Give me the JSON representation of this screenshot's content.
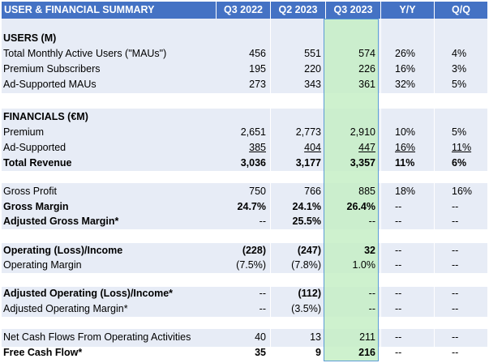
{
  "header": {
    "title": "USER & FINANCIAL SUMMARY",
    "columns": [
      "Q3 2022",
      "Q2 2023",
      "Q3 2023",
      "Y/Y",
      "Q/Q"
    ]
  },
  "sections": {
    "users": "USERS (M)",
    "financials": "FINANCIALS (€M)"
  },
  "rows": {
    "mau": {
      "label": "Total Monthly Active Users (\"MAUs\")",
      "q322": "456",
      "q223": "551",
      "q323": "574",
      "yy": "26%",
      "qq": "4%"
    },
    "premium_subs": {
      "label": "Premium Subscribers",
      "q322": "195",
      "q223": "220",
      "q323": "226",
      "yy": "16%",
      "qq": "3%"
    },
    "ad_maus": {
      "label": "Ad-Supported MAUs",
      "q322": "273",
      "q223": "343",
      "q323": "361",
      "yy": "32%",
      "qq": "5%"
    },
    "premium": {
      "label": "Premium",
      "q322": "2,651",
      "q223": "2,773",
      "q323": "2,910",
      "yy": "10%",
      "qq": "5%"
    },
    "ad_supported": {
      "label": "Ad-Supported",
      "q322": "385",
      "q223": "404",
      "q323": "447",
      "yy": "16%",
      "qq": "11%"
    },
    "total_revenue": {
      "label": "Total Revenue",
      "q322": "3,036",
      "q223": "3,177",
      "q323": "3,357",
      "yy": "11%",
      "qq": "6%"
    },
    "gross_profit": {
      "label": "Gross Profit",
      "q322": "750",
      "q223": "766",
      "q323": "885",
      "yy": "18%",
      "qq": "16%"
    },
    "gross_margin": {
      "label": "Gross Margin",
      "q322": "24.7%",
      "q223": "24.1%",
      "q323": "26.4%",
      "yy": "--",
      "qq": "--"
    },
    "adj_gross_margin": {
      "label": "Adjusted Gross Margin*",
      "q322": "--",
      "q223": "25.5%",
      "q323": "--",
      "yy": "--",
      "qq": "--"
    },
    "op_income": {
      "label": "Operating (Loss)/Income",
      "q322": "(228)",
      "q223": "(247)",
      "q323": "32",
      "yy": "--",
      "qq": "--"
    },
    "op_margin": {
      "label": "Operating Margin",
      "q322": "(7.5%)",
      "q223": "(7.8%)",
      "q323": "1.0%",
      "yy": "--",
      "qq": "--"
    },
    "adj_op_income": {
      "label": "Adjusted Operating (Loss)/Income*",
      "q322": "--",
      "q223": "(112)",
      "q323": "--",
      "yy": "--",
      "qq": "--"
    },
    "adj_op_margin": {
      "label": "Adjusted Operating Margin*",
      "q322": "--",
      "q223": "(3.5%)",
      "q323": "--",
      "yy": "--",
      "qq": "--"
    },
    "net_cash_ops": {
      "label": "Net Cash Flows From Operating Activities",
      "q322": "40",
      "q223": "13",
      "q323": "211",
      "yy": "--",
      "qq": "--"
    },
    "fcf": {
      "label": "Free Cash Flow*",
      "q322": "35",
      "q223": "9",
      "q323": "216",
      "yy": "--",
      "qq": "--"
    }
  },
  "colors": {
    "header_bg": "#4472c4",
    "band_bg": "#e7ecf6",
    "highlight_fill": "#c6efc6",
    "highlight_border": "#5b9bd5"
  }
}
